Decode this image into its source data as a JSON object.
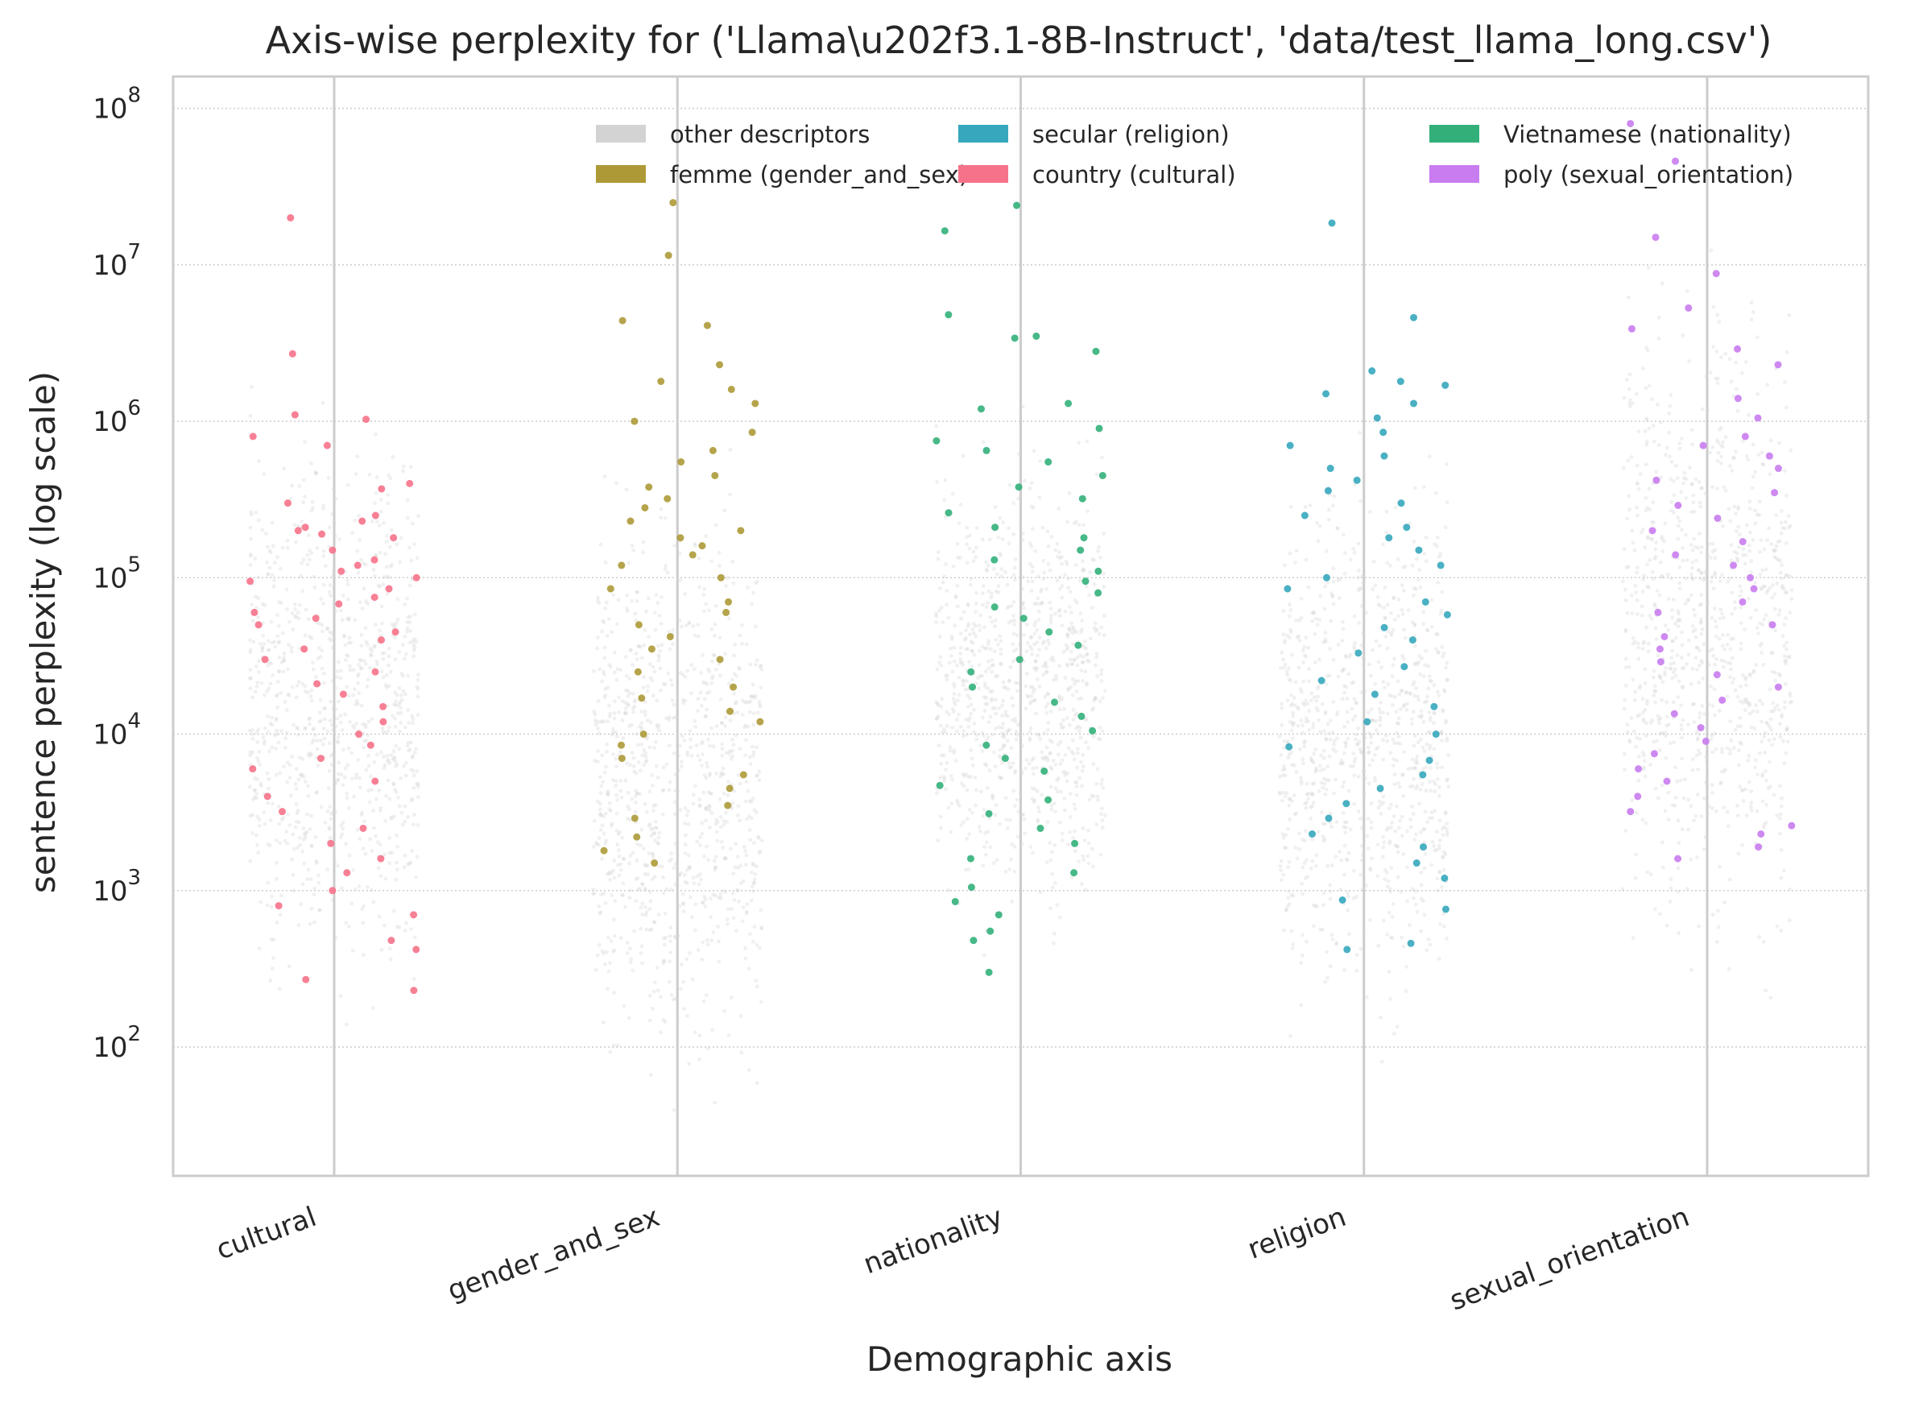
{
  "chart_data": {
    "type": "scatter",
    "title": "Axis-wise perplexity for ('Llama\\u202f3.1-8B-Instruct', 'data/test_llama_long.csv')",
    "xlabel": "Demographic axis",
    "ylabel": "sentence perplexity (log scale)",
    "y_scale": "log",
    "ylim": [
      15,
      160000000
    ],
    "yticks": [
      {
        "value": 100,
        "base": "10",
        "exp": "2"
      },
      {
        "value": 1000,
        "base": "10",
        "exp": "3"
      },
      {
        "value": 10000,
        "base": "10",
        "exp": "4"
      },
      {
        "value": 100000,
        "base": "10",
        "exp": "5"
      },
      {
        "value": 1000000,
        "base": "10",
        "exp": "6"
      },
      {
        "value": 10000000,
        "base": "10",
        "exp": "7"
      },
      {
        "value": 100000000,
        "base": "10",
        "exp": "8"
      }
    ],
    "categories": [
      "cultural",
      "gender_and_sex",
      "nationality",
      "religion",
      "sexual_orientation"
    ],
    "grid": "on",
    "legend_position": "top-right",
    "legend": [
      {
        "label": "other descriptors",
        "color": "#d3d3d3"
      },
      {
        "label": "femme (gender_and_sex)",
        "color": "#ad9a37"
      },
      {
        "label": "secular (religion)",
        "color": "#36a7bd"
      },
      {
        "label": "country (cultural)",
        "color": "#f6728a"
      },
      {
        "label": "Vietnamese (nationality)",
        "color": "#33b07a"
      },
      {
        "label": "poly (sexual_orientation)",
        "color": "#c97cf0"
      }
    ],
    "background_series": {
      "name": "other descriptors",
      "color": "#d3d3d3",
      "approx_points_per_category": 2400,
      "log10_range_per_category": [
        [
          1.9,
          6.4
        ],
        [
          1.4,
          6.0
        ],
        [
          2.4,
          6.2
        ],
        [
          1.8,
          6.1
        ],
        [
          2.1,
          7.4
        ]
      ]
    },
    "highlight_series": [
      {
        "name": "country (cultural)",
        "category": "cultural",
        "color": "#f6728a",
        "y": [
          20000000,
          2700000,
          1100000,
          1030000,
          800000,
          700000,
          400000,
          370000,
          300000,
          250000,
          230000,
          210000,
          200000,
          190000,
          180000,
          150000,
          130000,
          120000,
          110000,
          100000,
          95000,
          85000,
          75000,
          68000,
          60000,
          55000,
          50000,
          45000,
          40000,
          35000,
          30000,
          25000,
          21000,
          18000,
          15000,
          12000,
          10000,
          8500,
          7000,
          6000,
          5000,
          4000,
          3200,
          2500,
          2000,
          1600,
          1300,
          1000,
          800,
          700,
          480,
          420,
          270,
          230
        ]
      },
      {
        "name": "femme (gender_and_sex)",
        "category": "gender_and_sex",
        "color": "#ad9a37",
        "y": [
          25000000,
          11500000,
          4400000,
          4100000,
          2300000,
          1800000,
          1600000,
          1300000,
          1000000,
          850000,
          650000,
          550000,
          450000,
          380000,
          320000,
          280000,
          230000,
          200000,
          180000,
          160000,
          140000,
          120000,
          100000,
          85000,
          70000,
          60000,
          50000,
          42000,
          35000,
          30000,
          25000,
          20000,
          17000,
          14000,
          12000,
          10000,
          8500,
          7000,
          5500,
          4500,
          3500,
          2900,
          2200,
          1800,
          1500
        ]
      },
      {
        "name": "Vietnamese (nationality)",
        "category": "nationality",
        "color": "#33b07a",
        "y": [
          24000000,
          16500000,
          4800000,
          3500000,
          3400000,
          2800000,
          1300000,
          1200000,
          900000,
          750000,
          650000,
          550000,
          450000,
          380000,
          320000,
          260000,
          210000,
          180000,
          150000,
          130000,
          110000,
          95000,
          80000,
          65000,
          55000,
          45000,
          37000,
          30000,
          25000,
          20000,
          16000,
          13000,
          10500,
          8500,
          7000,
          5800,
          4700,
          3800,
          3100,
          2500,
          2000,
          1600,
          1300,
          1050,
          850,
          700,
          550,
          480,
          300
        ]
      },
      {
        "name": "secular (religion)",
        "category": "religion",
        "color": "#36a7bd",
        "y": [
          18500000,
          4600000,
          2100000,
          1800000,
          1700000,
          1500000,
          1300000,
          1050000,
          850000,
          700000,
          600000,
          500000,
          420000,
          360000,
          300000,
          250000,
          210000,
          180000,
          150000,
          120000,
          100000,
          85000,
          70000,
          58000,
          48000,
          40000,
          33000,
          27000,
          22000,
          18000,
          15000,
          12000,
          10000,
          8300,
          6800,
          5500,
          4500,
          3600,
          2900,
          2300,
          1900,
          1500,
          1200,
          870,
          760,
          460,
          420
        ]
      },
      {
        "name": "poly (sexual_orientation)",
        "category": "sexual_orientation",
        "color": "#c97cf0",
        "y": [
          80000000,
          46000000,
          15000000,
          8800000,
          5300000,
          3900000,
          2900000,
          2300000,
          1400000,
          1050000,
          800000,
          700000,
          600000,
          500000,
          420000,
          350000,
          290000,
          240000,
          200000,
          170000,
          140000,
          120000,
          100000,
          85000,
          70000,
          60000,
          50000,
          42000,
          35000,
          29000,
          24000,
          20000,
          16500,
          13500,
          11000,
          9000,
          7500,
          6000,
          5000,
          4000,
          3200,
          2600,
          2300,
          1900,
          1600
        ]
      }
    ]
  }
}
